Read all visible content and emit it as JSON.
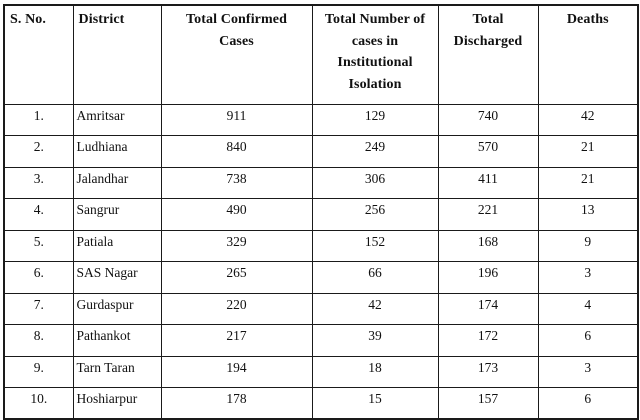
{
  "table": {
    "headers": [
      "S. No.",
      "District",
      "Total Confirmed Cases",
      "Total Number of cases in Institutional Isolation",
      "Total Discharged",
      "Deaths"
    ],
    "column_keys": [
      "serial",
      "district",
      "confirmed",
      "isolation",
      "discharged",
      "deaths"
    ],
    "rows": [
      [
        "1.",
        "Amritsar",
        "911",
        "129",
        "740",
        "42"
      ],
      [
        "2.",
        "Ludhiana",
        "840",
        "249",
        "570",
        "21"
      ],
      [
        "3.",
        "Jalandhar",
        "738",
        "306",
        "411",
        "21"
      ],
      [
        "4.",
        "Sangrur",
        "490",
        "256",
        "221",
        "13"
      ],
      [
        "5.",
        "Patiala",
        "329",
        "152",
        "168",
        "9"
      ],
      [
        "6.",
        "SAS Nagar",
        "265",
        "66",
        "196",
        "3"
      ],
      [
        "7.",
        "Gurdaspur",
        "220",
        "42",
        "174",
        "4"
      ],
      [
        "8.",
        "Pathankot",
        "217",
        "39",
        "172",
        "6"
      ],
      [
        "9.",
        "Tarn Taran",
        "194",
        "18",
        "173",
        "3"
      ],
      [
        "10.",
        "Hoshiarpur",
        "178",
        "15",
        "157",
        "6"
      ]
    ]
  },
  "colors": {
    "border": "#1a1a1a",
    "background": "#ffffff",
    "text": "#111111"
  }
}
